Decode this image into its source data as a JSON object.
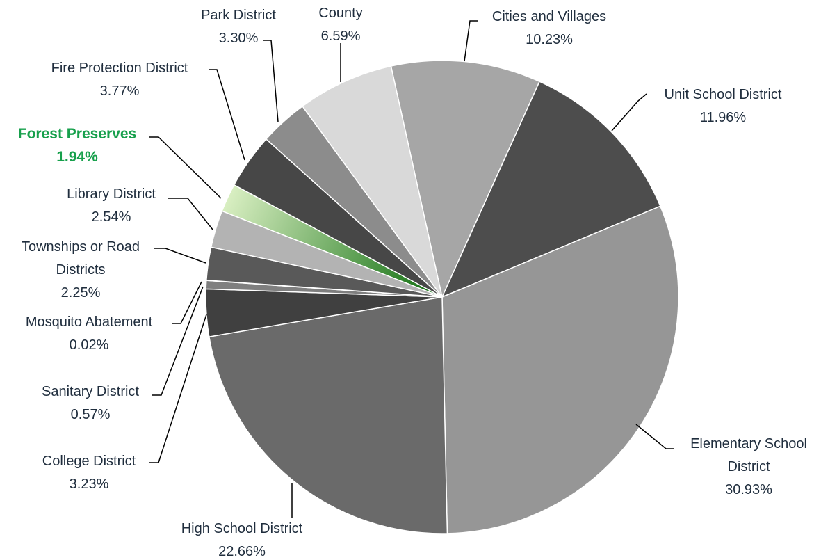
{
  "chart_data": {
    "type": "pie",
    "categories": [
      "Cities and Villages",
      "Unit School District",
      "Elementary School District",
      "High School District",
      "College District",
      "Sanitary District",
      "Mosquito Abatement",
      "Townships or Road Districts",
      "Library District",
      "Forest Preserves",
      "Fire Protection District",
      "Park District",
      "County"
    ],
    "values": [
      10.23,
      11.96,
      30.93,
      22.66,
      3.23,
      0.57,
      0.02,
      2.25,
      2.54,
      1.94,
      3.77,
      3.3,
      6.59
    ],
    "value_labels": [
      "10.23%",
      "11.96%",
      "30.93%",
      "22.66%",
      "3.23%",
      "0.57%",
      "0.02%",
      "2.25%",
      "2.54%",
      "1.94%",
      "3.77%",
      "3.30%",
      "6.59%"
    ],
    "colors": [
      "#a6a6a6",
      "#4d4d4d",
      "#969696",
      "#6a6a6a",
      "#404040",
      "#7f7f7f",
      "#a0a0a0",
      "#595959",
      "#b3b3b3",
      [
        "#d9efc2",
        "#0b6b0b"
      ],
      "#474747",
      "#8c8c8c",
      "#d9d9d9"
    ]
  }
}
